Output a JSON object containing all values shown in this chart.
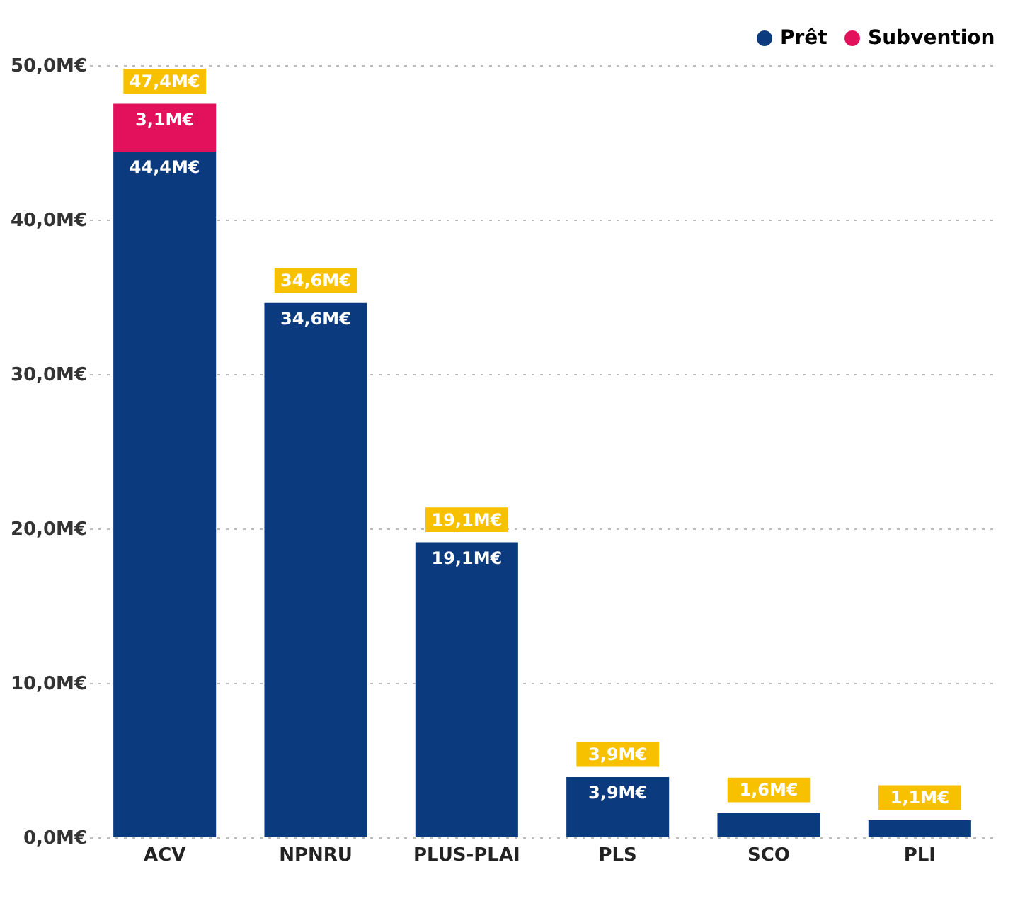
{
  "chart_data": {
    "type": "bar",
    "stacked": true,
    "categories": [
      "ACV",
      "NPNRU",
      "PLUS-PLAI",
      "PLS",
      "SCO",
      "PLI"
    ],
    "series": [
      {
        "name": "Prêt",
        "color": "#0b3a7e",
        "values": [
          44.4,
          34.6,
          19.1,
          3.9,
          1.6,
          1.1
        ],
        "value_labels": [
          "44,4M€",
          "34,6M€",
          "19,1M€",
          "3,9M€",
          null,
          null
        ]
      },
      {
        "name": "Subvention",
        "color": "#e3105c",
        "values": [
          3.1,
          0,
          0,
          0,
          0,
          0
        ],
        "value_labels": [
          "3,1M€",
          null,
          null,
          null,
          null,
          null
        ]
      }
    ],
    "totals": [
      "47,4M€",
      "34,6M€",
      "19,1M€",
      "3,9M€",
      "1,6M€",
      "1,1M€"
    ],
    "ylim": [
      0,
      50
    ],
    "yticks": [
      {
        "value": 0,
        "label": "0,0M€"
      },
      {
        "value": 10,
        "label": "10,0M€"
      },
      {
        "value": 20,
        "label": "20,0M€"
      },
      {
        "value": 30,
        "label": "30,0M€"
      },
      {
        "value": 40,
        "label": "40,0M€"
      },
      {
        "value": 50,
        "label": "50,0M€"
      }
    ],
    "grid": "y",
    "legend": "top right"
  }
}
